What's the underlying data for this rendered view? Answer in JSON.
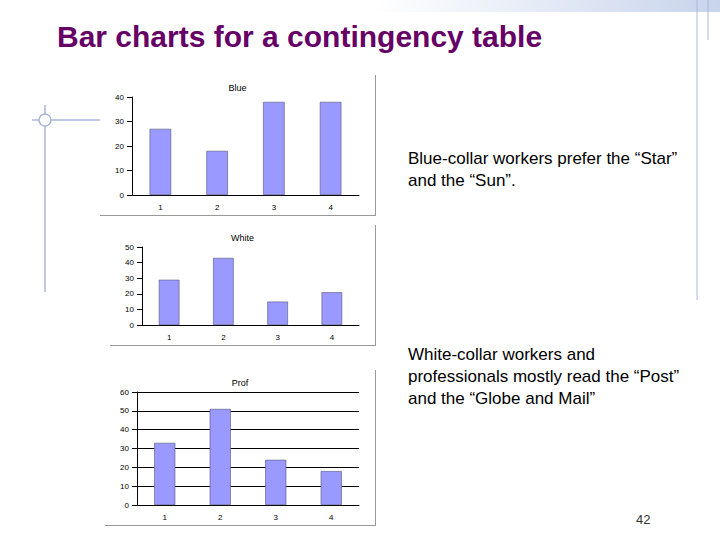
{
  "slide": {
    "title": "Bar charts for a contingency table",
    "notes": [
      "Blue-collar workers prefer the “Star” and the “Sun”.",
      "White-collar workers and professionals mostly read the “Post” and the “Globe and Mail”"
    ],
    "page_number": 42
  },
  "chart_data": [
    {
      "type": "bar",
      "title": "Blue",
      "categories": [
        "1",
        "2",
        "3",
        "4"
      ],
      "values": [
        27,
        18,
        38,
        38
      ],
      "color": "#9999ff",
      "ylim": [
        0,
        40
      ],
      "yticks": [
        0,
        10,
        20,
        30,
        40
      ],
      "grid": false
    },
    {
      "type": "bar",
      "title": "White",
      "categories": [
        "1",
        "2",
        "3",
        "4"
      ],
      "values": [
        29,
        43,
        15,
        21
      ],
      "color": "#9999ff",
      "ylim": [
        0,
        50
      ],
      "yticks": [
        0,
        10,
        20,
        30,
        40,
        50
      ],
      "grid": false
    },
    {
      "type": "bar",
      "title": "Prof",
      "categories": [
        "1",
        "2",
        "3",
        "4"
      ],
      "values": [
        33,
        51,
        24,
        18
      ],
      "color": "#9999ff",
      "ylim": [
        0,
        60
      ],
      "yticks": [
        0,
        10,
        20,
        30,
        40,
        50,
        60
      ],
      "grid": true
    }
  ]
}
